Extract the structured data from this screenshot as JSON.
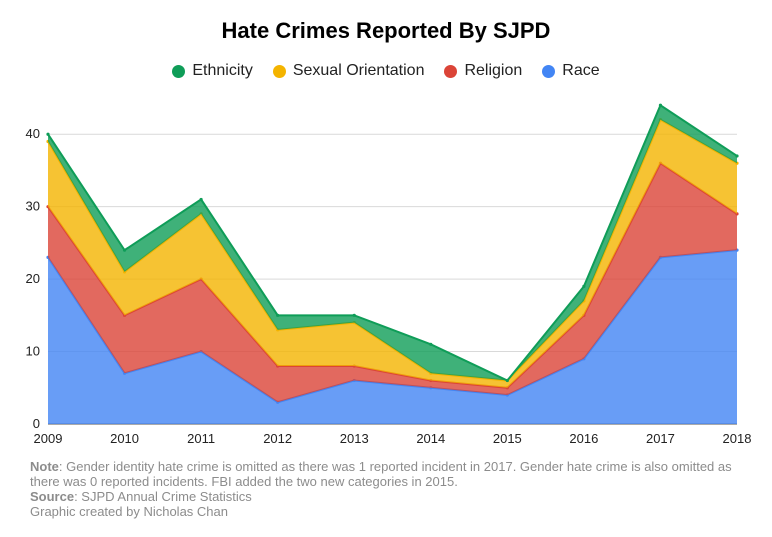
{
  "chart_data": {
    "type": "area",
    "stacked": true,
    "title": "Hate Crimes Reported By SJPD",
    "x": [
      "2009",
      "2010",
      "2011",
      "2012",
      "2013",
      "2014",
      "2015",
      "2016",
      "2017",
      "2018"
    ],
    "series": [
      {
        "name": "Race",
        "color": "#4285f4",
        "values": [
          23,
          7,
          10,
          3,
          6,
          5,
          4,
          9,
          23,
          24
        ]
      },
      {
        "name": "Religion",
        "color": "#db4437",
        "values": [
          7,
          8,
          10,
          5,
          2,
          1,
          1,
          6,
          13,
          5
        ]
      },
      {
        "name": "Sexual Orientation",
        "color": "#f4b400",
        "values": [
          9,
          6,
          9,
          5,
          6,
          1,
          1,
          2,
          6,
          7
        ]
      },
      {
        "name": "Ethnicity",
        "color": "#0f9d58",
        "values": [
          1,
          3,
          2,
          2,
          1,
          4,
          0,
          2,
          2,
          1
        ]
      }
    ],
    "legend_order": [
      "Ethnicity",
      "Sexual Orientation",
      "Religion",
      "Race"
    ],
    "legend_position": "top",
    "ylim": [
      0,
      45
    ],
    "yticks": [
      0,
      10,
      20,
      30,
      40
    ],
    "grid": true
  },
  "footer": {
    "note_label": "Note",
    "note_text": ": Gender identity hate crime is omitted as there was 1 reported incident in 2017. Gender hate crime is also omitted as there was 0 reported incidents. FBI added the two new categories in 2015.",
    "source_label": "Source",
    "source_text": ": SJPD Annual Crime Statistics",
    "credit": "Graphic created by Nicholas Chan"
  }
}
